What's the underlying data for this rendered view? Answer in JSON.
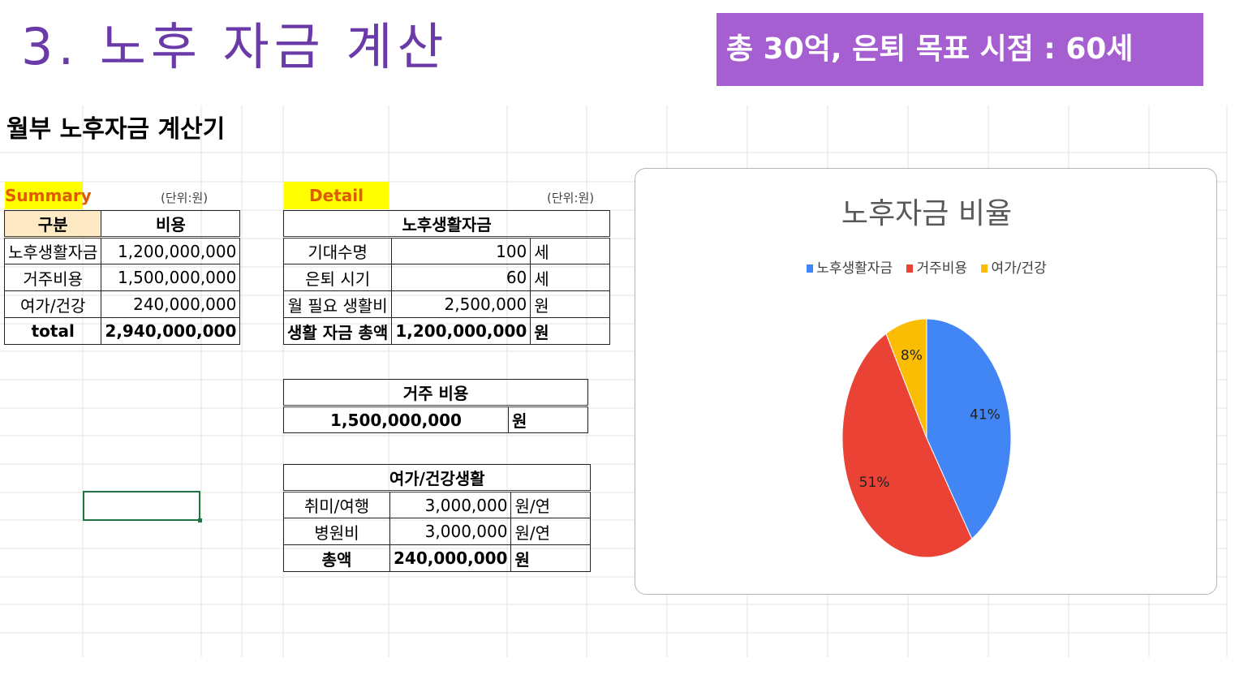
{
  "slide": {
    "title": "3. 노후 자금 계산",
    "goal_banner": "총 30억, 은퇴 목표 시점  : 60세"
  },
  "sheet": {
    "heading": "월부 노후자금 계산기"
  },
  "summary": {
    "tag": "Summary",
    "unit": "(단위:원)",
    "headers": [
      "구분",
      "비용"
    ],
    "rows": [
      {
        "label": "노후생활자금",
        "value": "1,200,000,000"
      },
      {
        "label": "거주비용",
        "value": "1,500,000,000"
      },
      {
        "label": "여가/건강",
        "value": "240,000,000"
      }
    ],
    "total": {
      "label": "total",
      "value": "2,940,000,000"
    }
  },
  "detail": {
    "tag": "Detail",
    "unit": "(단위:원)",
    "living": {
      "header": "노후생활자금",
      "rows": [
        {
          "label": "기대수명",
          "value": "100",
          "unit": "세"
        },
        {
          "label": "은퇴 시기",
          "value": "60",
          "unit": "세"
        },
        {
          "label": "월 필요 생활비",
          "value": "2,500,000",
          "unit": "원"
        }
      ],
      "total": {
        "label": "생활 자금 총액",
        "value": "1,200,000,000",
        "unit": "원"
      }
    },
    "housing": {
      "header": "거주 비용",
      "value": "1,500,000,000",
      "unit": "원"
    },
    "leisure": {
      "header": "여가/건강생활",
      "rows": [
        {
          "label": "취미/여행",
          "value": "3,000,000",
          "unit": "원/연"
        },
        {
          "label": "병원비",
          "value": "3,000,000",
          "unit": "원/연"
        }
      ],
      "total": {
        "label": "총액",
        "value": "240,000,000",
        "unit": "원"
      }
    }
  },
  "chart_data": {
    "type": "pie",
    "title": "노후자금 비율",
    "legend_position": "top",
    "categories": [
      "노후생활자금",
      "거주비용",
      "여가/건강"
    ],
    "values": [
      41,
      51,
      8
    ],
    "labels": [
      "41%",
      "51%",
      "8%"
    ],
    "colors": [
      "#4285f4",
      "#ea4335",
      "#fbbc04"
    ]
  }
}
